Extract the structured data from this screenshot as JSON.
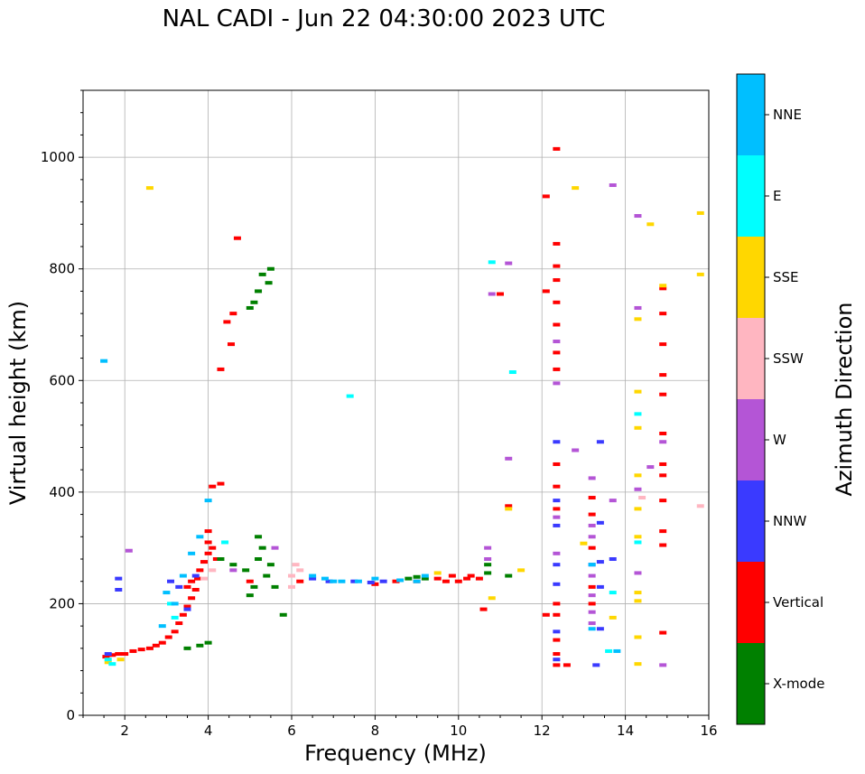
{
  "chart_data": {
    "type": "scatter",
    "title": "NAL CADI - Jun 22 04:30:00 2023 UTC",
    "xlabel": "Frequency (MHz)",
    "ylabel": "Virtual height (km)",
    "xlim": [
      1,
      16
    ],
    "ylim": [
      0,
      1120
    ],
    "x_ticks": [
      2,
      4,
      6,
      8,
      10,
      12,
      14,
      16
    ],
    "y_ticks": [
      0,
      200,
      400,
      600,
      800,
      1000
    ],
    "grid": true,
    "colorbar": {
      "label": "Azimuth Direction",
      "categories": [
        {
          "name": "X-mode",
          "color": "#008000"
        },
        {
          "name": "Vertical",
          "color": "#ff0000"
        },
        {
          "name": "NNW",
          "color": "#3a3aff"
        },
        {
          "name": "W",
          "color": "#b455d6"
        },
        {
          "name": "SSW",
          "color": "#ffb6c1"
        },
        {
          "name": "SSE",
          "color": "#ffd700"
        },
        {
          "name": "E",
          "color": "#00ffff"
        },
        {
          "name": "NNE",
          "color": "#00bfff"
        }
      ]
    },
    "series": [
      {
        "name": "Vertical",
        "points": [
          [
            1.55,
            105
          ],
          [
            1.7,
            108
          ],
          [
            1.85,
            110
          ],
          [
            2.0,
            110
          ],
          [
            2.2,
            115
          ],
          [
            2.4,
            118
          ],
          [
            2.6,
            120
          ],
          [
            2.75,
            125
          ],
          [
            2.9,
            130
          ],
          [
            3.05,
            140
          ],
          [
            3.2,
            150
          ],
          [
            3.3,
            165
          ],
          [
            3.4,
            180
          ],
          [
            3.5,
            195
          ],
          [
            3.6,
            210
          ],
          [
            3.7,
            225
          ],
          [
            3.75,
            245
          ],
          [
            3.8,
            260
          ],
          [
            3.9,
            275
          ],
          [
            4.0,
            290
          ],
          [
            4.0,
            310
          ],
          [
            4.0,
            330
          ],
          [
            4.1,
            300
          ],
          [
            4.2,
            280
          ],
          [
            3.6,
            240
          ],
          [
            3.5,
            230
          ],
          [
            4.1,
            410
          ],
          [
            4.3,
            415
          ],
          [
            4.45,
            705
          ],
          [
            4.55,
            665
          ],
          [
            4.6,
            720
          ],
          [
            4.7,
            855
          ],
          [
            4.3,
            620
          ],
          [
            5.0,
            240
          ],
          [
            6.2,
            240
          ],
          [
            8.0,
            235
          ],
          [
            8.5,
            240
          ],
          [
            9.0,
            240
          ],
          [
            9.5,
            245
          ],
          [
            9.7,
            240
          ],
          [
            9.85,
            250
          ],
          [
            10.0,
            240
          ],
          [
            10.2,
            245
          ],
          [
            10.3,
            250
          ],
          [
            10.5,
            245
          ],
          [
            10.6,
            190
          ],
          [
            11.0,
            755
          ],
          [
            11.2,
            375
          ],
          [
            12.1,
            180
          ],
          [
            12.1,
            930
          ],
          [
            12.1,
            760
          ],
          [
            12.35,
            1015
          ],
          [
            12.35,
            845
          ],
          [
            12.35,
            805
          ],
          [
            12.35,
            780
          ],
          [
            12.35,
            740
          ],
          [
            12.35,
            700
          ],
          [
            12.35,
            650
          ],
          [
            12.35,
            620
          ],
          [
            12.35,
            450
          ],
          [
            12.35,
            410
          ],
          [
            12.35,
            370
          ],
          [
            12.35,
            200
          ],
          [
            12.35,
            180
          ],
          [
            12.35,
            135
          ],
          [
            12.35,
            110
          ],
          [
            12.35,
            90
          ],
          [
            12.6,
            90
          ],
          [
            13.2,
            390
          ],
          [
            13.2,
            360
          ],
          [
            13.2,
            300
          ],
          [
            13.2,
            230
          ],
          [
            13.2,
            200
          ],
          [
            14.9,
            765
          ],
          [
            14.9,
            720
          ],
          [
            14.9,
            665
          ],
          [
            14.9,
            610
          ],
          [
            14.9,
            575
          ],
          [
            14.9,
            505
          ],
          [
            14.9,
            450
          ],
          [
            14.9,
            430
          ],
          [
            14.9,
            385
          ],
          [
            14.9,
            330
          ],
          [
            14.9,
            305
          ],
          [
            14.9,
            148
          ]
        ]
      },
      {
        "name": "X-mode",
        "points": [
          [
            3.5,
            120
          ],
          [
            3.8,
            125
          ],
          [
            4.0,
            130
          ],
          [
            4.3,
            280
          ],
          [
            4.6,
            270
          ],
          [
            4.9,
            260
          ],
          [
            5.0,
            215
          ],
          [
            5.1,
            230
          ],
          [
            5.2,
            280
          ],
          [
            5.2,
            320
          ],
          [
            5.3,
            300
          ],
          [
            5.4,
            250
          ],
          [
            5.5,
            270
          ],
          [
            5.6,
            230
          ],
          [
            5.8,
            180
          ],
          [
            5.0,
            730
          ],
          [
            5.1,
            740
          ],
          [
            5.2,
            760
          ],
          [
            5.3,
            790
          ],
          [
            5.45,
            775
          ],
          [
            5.5,
            800
          ],
          [
            8.8,
            245
          ],
          [
            9.0,
            248
          ],
          [
            9.2,
            245
          ],
          [
            10.7,
            270
          ],
          [
            10.7,
            255
          ],
          [
            11.2,
            250
          ]
        ]
      },
      {
        "name": "NNW",
        "points": [
          [
            1.85,
            225
          ],
          [
            1.85,
            245
          ],
          [
            1.6,
            110
          ],
          [
            3.1,
            240
          ],
          [
            3.3,
            230
          ],
          [
            3.5,
            190
          ],
          [
            3.7,
            250
          ],
          [
            6.5,
            245
          ],
          [
            6.9,
            240
          ],
          [
            7.5,
            240
          ],
          [
            7.9,
            238
          ],
          [
            8.2,
            240
          ],
          [
            12.35,
            490
          ],
          [
            12.35,
            385
          ],
          [
            12.35,
            340
          ],
          [
            12.35,
            270
          ],
          [
            12.35,
            235
          ],
          [
            12.35,
            150
          ],
          [
            12.35,
            100
          ],
          [
            13.2,
            270
          ],
          [
            13.4,
            490
          ],
          [
            13.4,
            345
          ],
          [
            13.4,
            275
          ],
          [
            13.4,
            230
          ],
          [
            13.4,
            155
          ],
          [
            13.3,
            90
          ],
          [
            13.7,
            280
          ]
        ]
      },
      {
        "name": "W",
        "points": [
          [
            2.1,
            295
          ],
          [
            4.6,
            260
          ],
          [
            5.6,
            300
          ],
          [
            10.7,
            300
          ],
          [
            10.7,
            280
          ],
          [
            10.8,
            755
          ],
          [
            11.2,
            810
          ],
          [
            11.2,
            460
          ],
          [
            12.35,
            595
          ],
          [
            12.35,
            670
          ],
          [
            12.35,
            355
          ],
          [
            12.35,
            290
          ],
          [
            13.2,
            425
          ],
          [
            13.2,
            340
          ],
          [
            13.2,
            320
          ],
          [
            13.2,
            250
          ],
          [
            13.2,
            215
          ],
          [
            13.2,
            185
          ],
          [
            13.2,
            165
          ],
          [
            12.8,
            475
          ],
          [
            13.7,
            950
          ],
          [
            13.7,
            385
          ],
          [
            14.3,
            255
          ],
          [
            14.3,
            730
          ],
          [
            14.3,
            405
          ],
          [
            14.6,
            445
          ],
          [
            14.9,
            490
          ],
          [
            14.9,
            90
          ],
          [
            14.3,
            895
          ]
        ]
      },
      {
        "name": "SSW",
        "points": [
          [
            6.0,
            250
          ],
          [
            6.0,
            230
          ],
          [
            6.1,
            270
          ],
          [
            6.2,
            260
          ],
          [
            3.9,
            245
          ],
          [
            4.1,
            260
          ],
          [
            14.4,
            390
          ],
          [
            15.8,
            375
          ]
        ]
      },
      {
        "name": "SSE",
        "points": [
          [
            1.6,
            95
          ],
          [
            1.9,
            100
          ],
          [
            2.6,
            945
          ],
          [
            10.8,
            210
          ],
          [
            11.2,
            370
          ],
          [
            11.5,
            260
          ],
          [
            12.8,
            945
          ],
          [
            13.0,
            308
          ],
          [
            13.7,
            175
          ],
          [
            14.3,
            710
          ],
          [
            14.3,
            580
          ],
          [
            14.3,
            515
          ],
          [
            14.3,
            430
          ],
          [
            14.3,
            370
          ],
          [
            14.3,
            320
          ],
          [
            14.3,
            220
          ],
          [
            14.3,
            205
          ],
          [
            14.3,
            140
          ],
          [
            14.3,
            92
          ],
          [
            14.6,
            880
          ],
          [
            14.9,
            770
          ],
          [
            15.8,
            900
          ],
          [
            15.8,
            790
          ],
          [
            9.5,
            255
          ]
        ]
      },
      {
        "name": "E",
        "points": [
          [
            1.6,
            100
          ],
          [
            1.7,
            92
          ],
          [
            3.1,
            200
          ],
          [
            3.2,
            175
          ],
          [
            4.4,
            310
          ],
          [
            7.4,
            572
          ],
          [
            10.8,
            812
          ],
          [
            11.3,
            615
          ],
          [
            13.6,
            115
          ],
          [
            13.7,
            220
          ],
          [
            14.3,
            540
          ],
          [
            14.3,
            310
          ]
        ]
      },
      {
        "name": "NNE",
        "points": [
          [
            1.5,
            635
          ],
          [
            2.9,
            160
          ],
          [
            3.0,
            220
          ],
          [
            3.2,
            200
          ],
          [
            3.4,
            250
          ],
          [
            3.6,
            290
          ],
          [
            3.8,
            320
          ],
          [
            4.0,
            385
          ],
          [
            6.5,
            250
          ],
          [
            6.8,
            245
          ],
          [
            7.0,
            240
          ],
          [
            7.2,
            240
          ],
          [
            7.6,
            240
          ],
          [
            8.0,
            245
          ],
          [
            8.6,
            242
          ],
          [
            9.0,
            240
          ],
          [
            9.2,
            250
          ],
          [
            13.2,
            155
          ],
          [
            13.2,
            270
          ],
          [
            13.8,
            115
          ]
        ]
      }
    ]
  }
}
